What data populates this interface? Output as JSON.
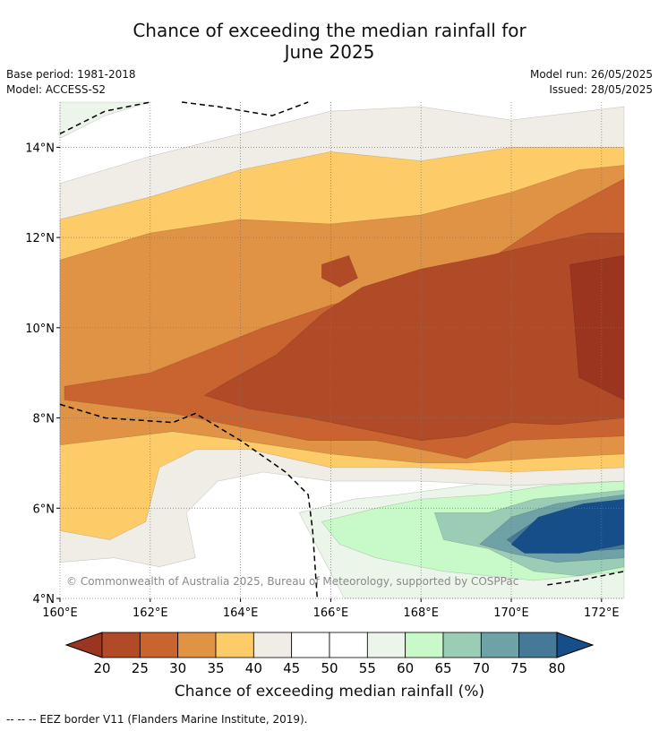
{
  "header": {
    "title_line1": "Chance of exceeding the median rainfall for",
    "title_line2": "June 2025",
    "base_period": "Base period: 1981-2018",
    "model": "Model: ACCESS-S2",
    "model_run": "Model run: 26/05/2025",
    "issued": "Issued: 28/05/2025"
  },
  "map": {
    "copyright": "© Commonwealth of Australia 2025, Bureau of Meteorology, supported by COSPPac"
  },
  "colorbar": {
    "title": "Chance of exceeding median rainfall (%)",
    "ticks": [
      "20",
      "25",
      "30",
      "35",
      "40",
      "45",
      "50",
      "55",
      "60",
      "65",
      "70",
      "75",
      "80"
    ],
    "colors": [
      "#9b3520",
      "#b14a27",
      "#c96431",
      "#e09345",
      "#fdcb68",
      "#f0ece6",
      "#ffffff",
      "#ffffff",
      "#ebf5e9",
      "#c7fac8",
      "#9bccb5",
      "#6fa2a7",
      "#457997",
      "#154e88"
    ]
  },
  "footer": {
    "eez_note": "--  --  -- EEZ border V11 (Flanders Marine Institute, 2019)."
  },
  "chart_data": {
    "type": "heatmap",
    "title": "Chance of exceeding the median rainfall for June 2025",
    "variable": "Chance of exceeding median rainfall (%)",
    "x_tick_labels": [
      "160°E",
      "162°E",
      "164°E",
      "166°E",
      "168°E",
      "170°E",
      "172°E"
    ],
    "y_tick_labels": [
      "4°N",
      "6°N",
      "8°N",
      "10°N",
      "12°N",
      "14°N"
    ],
    "xlim": [
      160,
      172.5
    ],
    "ylim": [
      4,
      15
    ],
    "levels": [
      20,
      25,
      30,
      35,
      40,
      45,
      50,
      55,
      60,
      65,
      70,
      75,
      80
    ],
    "grid": true,
    "regions": [
      {
        "range": "below 20",
        "points": [
          [
            171.3,
            11.4
          ],
          [
            172.5,
            11.6
          ],
          [
            172.5,
            8.4
          ],
          [
            171.5,
            8.9
          ]
        ]
      },
      {
        "range": "20-25",
        "points": [
          [
            163.7,
            8.8
          ],
          [
            164.8,
            9.4
          ],
          [
            165.8,
            10.3
          ],
          [
            166.7,
            10.9
          ],
          [
            168,
            11.3
          ],
          [
            169.5,
            11.6
          ],
          [
            170.8,
            11.9
          ],
          [
            171.7,
            12.1
          ],
          [
            172.5,
            12.1
          ],
          [
            172.5,
            8
          ],
          [
            171,
            7.85
          ],
          [
            170,
            7.9
          ],
          [
            169,
            7.6
          ],
          [
            168,
            7.5
          ],
          [
            167,
            7.7
          ],
          [
            165.5,
            8
          ],
          [
            164.2,
            8.2
          ],
          [
            163.2,
            8.5
          ]
        ]
      },
      {
        "range": "20-25",
        "points": [
          [
            165.8,
            11.4
          ],
          [
            166.4,
            11.6
          ],
          [
            166.6,
            11.1
          ],
          [
            166.2,
            10.9
          ],
          [
            165.8,
            11.1
          ]
        ]
      },
      {
        "range": "25-30",
        "points": [
          [
            160.1,
            8.7
          ],
          [
            162,
            9
          ],
          [
            163.5,
            9.6
          ],
          [
            164.5,
            10
          ],
          [
            166,
            10.5
          ],
          [
            167.5,
            10.9
          ],
          [
            168.5,
            11.3
          ],
          [
            169.5,
            11.5
          ],
          [
            171,
            12.5
          ],
          [
            172.5,
            13.3
          ],
          [
            172.5,
            7.6
          ],
          [
            170,
            7.5
          ],
          [
            169,
            7.1
          ],
          [
            168,
            7.3
          ],
          [
            167,
            7.5
          ],
          [
            165.5,
            7.5
          ],
          [
            164,
            7.8
          ],
          [
            162.5,
            8.1
          ],
          [
            160.1,
            8.4
          ]
        ]
      },
      {
        "range": "30-35",
        "points": [
          [
            160,
            11.5
          ],
          [
            162,
            12.1
          ],
          [
            164,
            12.4
          ],
          [
            166,
            12.3
          ],
          [
            168,
            12.5
          ],
          [
            170,
            13
          ],
          [
            171.5,
            13.5
          ],
          [
            172.5,
            13.6
          ],
          [
            172.5,
            7.2
          ],
          [
            170.5,
            7.1
          ],
          [
            169,
            7
          ],
          [
            168,
            7
          ],
          [
            166,
            7.2
          ],
          [
            164,
            7.5
          ],
          [
            162.5,
            7.7
          ],
          [
            160,
            7.4
          ]
        ]
      },
      {
        "range": "35-40",
        "points": [
          [
            160,
            12.4
          ],
          [
            162,
            12.9
          ],
          [
            164,
            13.5
          ],
          [
            166,
            13.9
          ],
          [
            168,
            13.7
          ],
          [
            170,
            14
          ],
          [
            172.5,
            14
          ],
          [
            172.5,
            6.9
          ],
          [
            170,
            6.8
          ],
          [
            168,
            6.9
          ],
          [
            166,
            6.9
          ],
          [
            164.2,
            7.3
          ],
          [
            163,
            7.3
          ],
          [
            162.2,
            6.9
          ],
          [
            161.9,
            5.7
          ],
          [
            161.1,
            5.3
          ],
          [
            160,
            5.5
          ]
        ]
      },
      {
        "range": "40-45",
        "points": [
          [
            160,
            13.2
          ],
          [
            162,
            13.8
          ],
          [
            164,
            14.3
          ],
          [
            166,
            14.8
          ],
          [
            168,
            14.9
          ],
          [
            170,
            14.6
          ],
          [
            172.5,
            14.9
          ],
          [
            172.5,
            6.6
          ],
          [
            170,
            6.5
          ],
          [
            168,
            6.6
          ],
          [
            166,
            6.6
          ],
          [
            164.5,
            6.8
          ],
          [
            163.5,
            6.6
          ],
          [
            162.8,
            5.9
          ],
          [
            163,
            4.9
          ],
          [
            162.2,
            4.7
          ],
          [
            161.2,
            4.9
          ],
          [
            160,
            4.8
          ]
        ]
      },
      {
        "range": "55-60",
        "points": [
          [
            165.3,
            5.9
          ],
          [
            166.5,
            6.2
          ],
          [
            167.5,
            6.3
          ],
          [
            169,
            6.5
          ],
          [
            170.5,
            6.7
          ],
          [
            172.5,
            6.9
          ],
          [
            172.5,
            4
          ],
          [
            166.3,
            4
          ]
        ]
      },
      {
        "range": "60-65",
        "points": [
          [
            165.8,
            5.7
          ],
          [
            167,
            6
          ],
          [
            168,
            6.2
          ],
          [
            169.5,
            6.3
          ],
          [
            170.8,
            6.5
          ],
          [
            172.5,
            6.6
          ],
          [
            172.5,
            4.6
          ],
          [
            170.5,
            4.4
          ],
          [
            168.5,
            4.6
          ],
          [
            167,
            4.9
          ],
          [
            166.2,
            5.2
          ]
        ]
      },
      {
        "range": "65-70",
        "points": [
          [
            168.3,
            5.9
          ],
          [
            169.5,
            5.9
          ],
          [
            170.5,
            6.2
          ],
          [
            171.5,
            6.3
          ],
          [
            172.5,
            6.4
          ],
          [
            172.5,
            4.7
          ],
          [
            171.5,
            4.5
          ],
          [
            170.5,
            4.6
          ],
          [
            169.5,
            5.1
          ],
          [
            168.5,
            5.3
          ]
        ]
      },
      {
        "range": "70-75",
        "points": [
          [
            169.3,
            5.2
          ],
          [
            170,
            5.8
          ],
          [
            171,
            6.1
          ],
          [
            172.5,
            6.3
          ],
          [
            172.5,
            4.9
          ],
          [
            171,
            4.8
          ],
          [
            170,
            5
          ]
        ]
      },
      {
        "range": "75-80",
        "points": [
          [
            169.9,
            5.3
          ],
          [
            170.5,
            5.7
          ],
          [
            171.3,
            6
          ],
          [
            172.5,
            6.2
          ],
          [
            172.5,
            5.1
          ],
          [
            171,
            5
          ],
          [
            170.2,
            5.1
          ]
        ]
      },
      {
        "range": "80 and above",
        "points": [
          [
            170,
            5.2
          ],
          [
            170.6,
            5.8
          ],
          [
            171.6,
            6.1
          ],
          [
            172.5,
            6.2
          ],
          [
            172.5,
            5.2
          ],
          [
            171.5,
            5
          ],
          [
            170.3,
            5
          ]
        ]
      },
      {
        "range": "55-60",
        "points": [
          [
            160,
            14.2
          ],
          [
            161,
            14.7
          ],
          [
            162,
            15
          ],
          [
            160,
            15
          ]
        ]
      }
    ],
    "eez_borders": [
      [
        [
          160,
          14.3
        ],
        [
          161,
          14.8
        ],
        [
          162,
          15
        ]
      ],
      [
        [
          162.7,
          15
        ],
        [
          163.5,
          14.9
        ],
        [
          164.7,
          14.7
        ],
        [
          165.5,
          15
        ]
      ],
      [
        [
          160,
          8.3
        ],
        [
          161,
          8
        ],
        [
          162.5,
          7.9
        ],
        [
          163,
          8.1
        ],
        [
          164,
          7.5
        ],
        [
          165,
          6.8
        ],
        [
          165.5,
          6.3
        ],
        [
          165.6,
          5.5
        ],
        [
          165.7,
          4
        ]
      ],
      [
        [
          170.8,
          4.3
        ],
        [
          171.5,
          4.4
        ],
        [
          172.5,
          4.6
        ]
      ]
    ]
  }
}
